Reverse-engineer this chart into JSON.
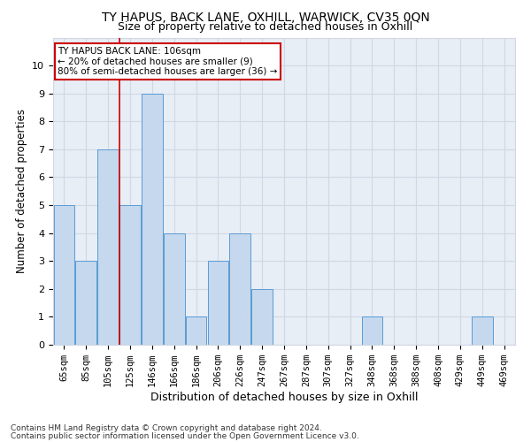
{
  "title1": "TY HAPUS, BACK LANE, OXHILL, WARWICK, CV35 0QN",
  "title2": "Size of property relative to detached houses in Oxhill",
  "xlabel": "Distribution of detached houses by size in Oxhill",
  "ylabel": "Number of detached properties",
  "categories": [
    "65sqm",
    "85sqm",
    "105sqm",
    "125sqm",
    "146sqm",
    "166sqm",
    "186sqm",
    "206sqm",
    "226sqm",
    "247sqm",
    "267sqm",
    "287sqm",
    "307sqm",
    "327sqm",
    "348sqm",
    "368sqm",
    "388sqm",
    "408sqm",
    "429sqm",
    "449sqm",
    "469sqm"
  ],
  "values": [
    5,
    3,
    7,
    5,
    9,
    4,
    1,
    3,
    4,
    2,
    0,
    0,
    0,
    0,
    1,
    0,
    0,
    0,
    0,
    1,
    0
  ],
  "bar_color": "#c5d8ed",
  "bar_edgecolor": "#5b9bd5",
  "grid_color": "#d0d8e4",
  "redline_after_bin": 2,
  "annotation_title": "TY HAPUS BACK LANE: 106sqm",
  "annotation_line1": "← 20% of detached houses are smaller (9)",
  "annotation_line2": "80% of semi-detached houses are larger (36) →",
  "annotation_box_edgecolor": "#cc0000",
  "footer1": "Contains HM Land Registry data © Crown copyright and database right 2024.",
  "footer2": "Contains public sector information licensed under the Open Government Licence v3.0.",
  "ylim": [
    0,
    11
  ],
  "yticks": [
    0,
    1,
    2,
    3,
    4,
    5,
    6,
    7,
    8,
    9,
    10,
    11
  ],
  "background_color": "#e8eef5",
  "title1_fontsize": 10,
  "title2_fontsize": 9,
  "ylabel_fontsize": 8.5,
  "xlabel_fontsize": 9,
  "tick_fontsize": 7.5,
  "footer_fontsize": 6.5
}
